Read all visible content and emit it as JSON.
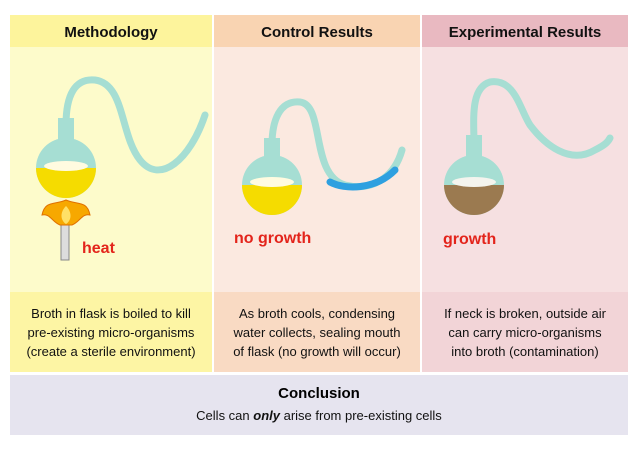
{
  "columns": [
    {
      "header": "Methodology",
      "label": "heat",
      "caption": [
        "Broth in flask is boiled to kill",
        "pre-existing micro-organisms",
        "(create a sterile environment)"
      ]
    },
    {
      "header": "Control Results",
      "label": "no growth",
      "caption": [
        "As broth cools, condensing",
        "water collects, sealing mouth",
        "of flask (no growth will occur)"
      ]
    },
    {
      "header": "Experimental Results",
      "label": "growth",
      "caption": [
        "If neck is broken, outside air",
        "can carry micro-organisms",
        "into broth (contamination)"
      ]
    }
  ],
  "conclusion": {
    "title": "Conclusion",
    "text": [
      "Cells can ",
      "only",
      " arise from pre-existing cells"
    ]
  }
}
